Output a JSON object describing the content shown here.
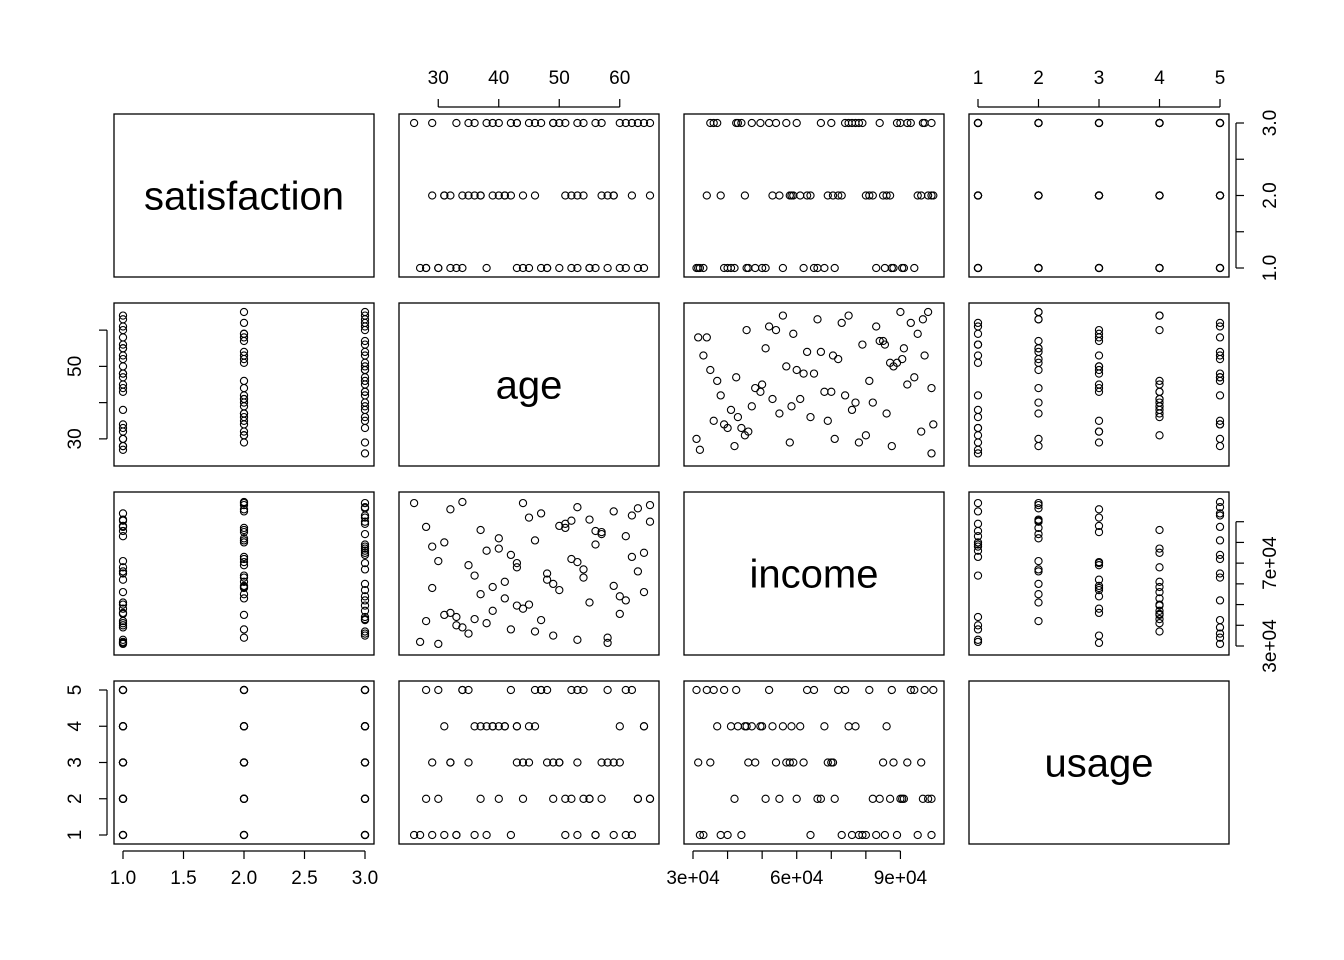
{
  "chart_data": {
    "type": "scatter",
    "subtype": "scatterplot-matrix",
    "title": "",
    "variables": [
      "satisfaction",
      "age",
      "income",
      "usage"
    ],
    "ranges": {
      "satisfaction": [
        1,
        3
      ],
      "age": [
        25,
        65
      ],
      "income": [
        30000,
        100000
      ],
      "usage": [
        1,
        5
      ]
    },
    "ticks": {
      "satisfaction": [
        1.0,
        1.5,
        2.0,
        2.5,
        3.0
      ],
      "age": [
        30,
        40,
        50,
        60
      ],
      "income": [
        30000,
        40000,
        50000,
        60000,
        70000,
        80000,
        90000
      ],
      "usage": [
        1,
        2,
        3,
        4,
        5
      ]
    },
    "tick_labels": {
      "satisfaction_bottom": [
        "1.0",
        "1.5",
        "2.0",
        "2.5",
        "3.0"
      ],
      "satisfaction_right": [
        "1.0",
        "2.0",
        "3.0"
      ],
      "age_top": [
        "30",
        "40",
        "50",
        "60"
      ],
      "age_left": [
        "30",
        "50"
      ],
      "income_bottom": [
        "3e+04",
        "6e+04",
        "9e+04"
      ],
      "income_right": [
        "3e+04",
        "7e+04"
      ],
      "usage_top": [
        "1",
        "2",
        "3",
        "4",
        "5"
      ],
      "usage_left": [
        "1",
        "2",
        "3",
        "4",
        "5"
      ]
    },
    "observations": {
      "satisfaction": [
        3,
        3,
        2,
        1,
        3,
        2,
        1,
        3,
        2,
        1,
        3,
        2,
        1,
        3,
        2,
        1,
        3,
        2,
        1,
        3,
        2,
        1,
        3,
        2,
        1,
        3,
        2,
        1,
        3,
        2,
        1,
        3,
        2,
        1,
        3,
        2,
        1,
        3,
        2,
        1,
        3,
        2,
        1,
        3,
        2,
        1,
        3,
        2,
        1,
        3,
        2,
        1,
        3,
        2,
        1,
        3,
        2,
        1,
        3,
        2,
        1,
        3,
        2,
        1,
        3,
        2,
        1,
        3,
        2,
        1,
        3,
        2,
        1,
        3,
        2,
        1,
        3,
        2,
        1,
        3
      ],
      "age": [
        26,
        35,
        29,
        28,
        64,
        59,
        30,
        43,
        51,
        45,
        33,
        46,
        48,
        65,
        41,
        53,
        53,
        57,
        63,
        39,
        62,
        34,
        45,
        37,
        43,
        56,
        58,
        50,
        49,
        31,
        61,
        61,
        32,
        30,
        46,
        36,
        47,
        50,
        40,
        38,
        38,
        34,
        44,
        54,
        37,
        27,
        42,
        59,
        55,
        36,
        31,
        48,
        49,
        65,
        64,
        51,
        52,
        32,
        57,
        41,
        33,
        62,
        35,
        55,
        40,
        42,
        28,
        60,
        44,
        60,
        29,
        54,
        58,
        63,
        39,
        56,
        47,
        53,
        52,
        43
      ],
      "income": [
        99000,
        36000,
        58000,
        42000,
        75000,
        95000,
        31000,
        70000,
        87000,
        50000,
        44000,
        81000,
        62000,
        90000,
        53000,
        33000,
        97000,
        85000,
        66000,
        47000,
        73000,
        39000,
        92000,
        55000,
        68000,
        79000,
        34000,
        88000,
        60000,
        45000,
        83000,
        52000,
        96000,
        71000,
        37000,
        64000,
        94000,
        57000,
        82000,
        41000,
        76000,
        99500,
        48000,
        67000,
        86000,
        32000,
        74000,
        59000,
        91000,
        43000,
        80000,
        65000,
        35000,
        98000,
        56000,
        89000,
        72000,
        46000,
        84000,
        61000,
        40000,
        93000,
        69000,
        51000,
        77000,
        38000,
        87500,
        54000,
        99000,
        45500,
        78000,
        63000,
        31500,
        96500,
        58500,
        85500,
        42500,
        70500,
        90500,
        49500
      ],
      "usage": [
        1,
        5,
        3,
        2,
        4,
        1,
        5,
        3,
        2,
        4,
        1,
        5,
        3,
        2,
        4,
        1,
        5,
        3,
        2,
        4,
        1,
        5,
        3,
        2,
        4,
        1,
        5,
        3,
        2,
        4,
        1,
        5,
        3,
        2,
        4,
        1,
        5,
        3,
        2,
        4,
        1,
        5,
        3,
        2,
        4,
        1,
        5,
        3,
        2,
        4,
        1,
        5,
        3,
        2,
        4,
        1,
        5,
        3,
        2,
        4,
        1,
        5,
        3,
        2,
        4,
        1,
        5,
        3,
        2,
        4,
        1,
        5,
        3,
        2,
        4,
        1,
        5,
        3,
        2,
        4
      ]
    },
    "grid": false,
    "legend": "none"
  }
}
